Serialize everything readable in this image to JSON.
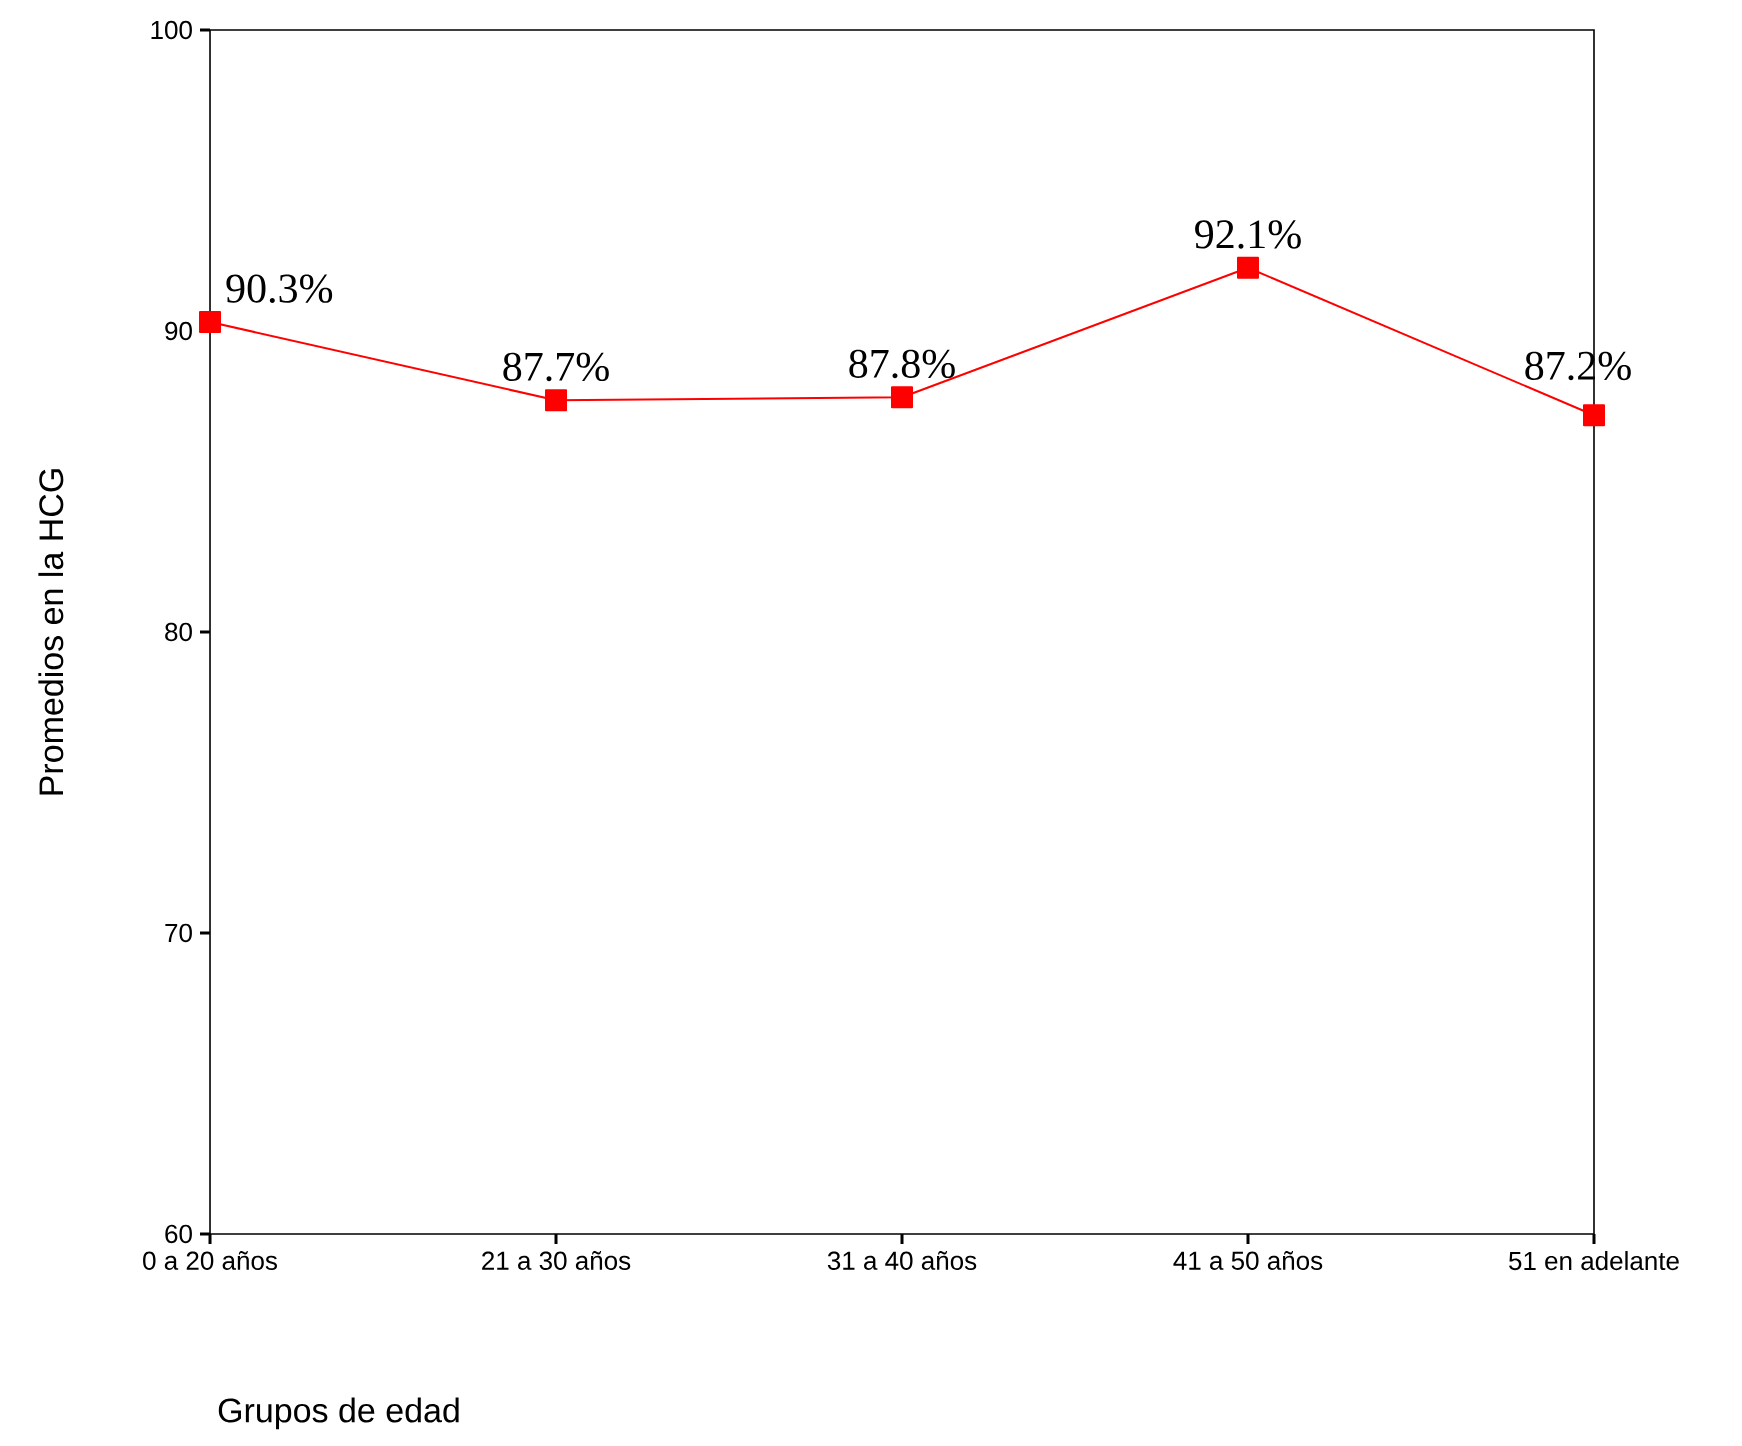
{
  "chart_data": {
    "type": "line",
    "xlabel": "Grupos de edad",
    "ylabel": "Promedios en la HCG",
    "categories": [
      "0 a 20 años",
      "21 a 30 años",
      "31 a 40 años",
      "41 a 50 años",
      "51 en adelante"
    ],
    "values": [
      90.3,
      87.7,
      87.8,
      92.1,
      87.2
    ],
    "value_labels": [
      "90.3%",
      "87.7%",
      "87.8%",
      "92.1%",
      "87.2%"
    ],
    "color": "#ff0000",
    "marker": "square",
    "line_style": "solid",
    "grid": false,
    "ylim": [
      60,
      100
    ],
    "yticks": [
      60,
      70,
      80,
      90,
      100
    ]
  }
}
